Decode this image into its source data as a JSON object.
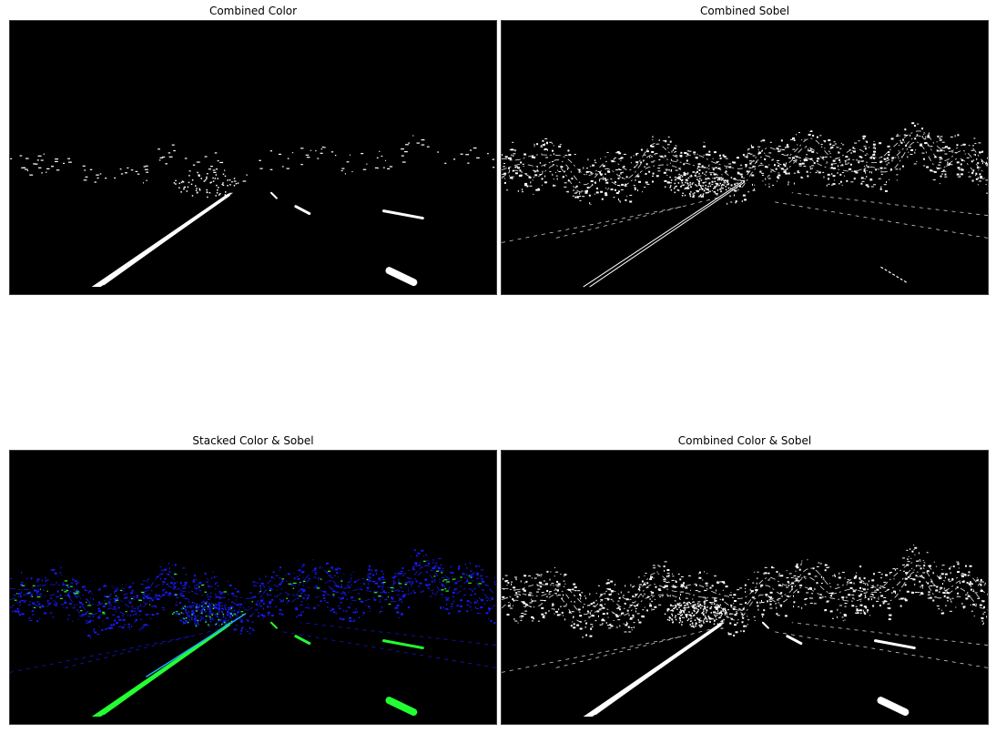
{
  "figure": {
    "panels": [
      {
        "title": "Combined Color",
        "mode": "white-lane"
      },
      {
        "title": "Combined Sobel",
        "mode": "white-edges"
      },
      {
        "title": "Stacked Color & Sobel",
        "mode": "stacked"
      },
      {
        "title": "Combined Color & Sobel",
        "mode": "white-combined"
      }
    ]
  },
  "colors": {
    "background": "#000000",
    "white": "#ffffff",
    "sobel_channel": "#1a1aff",
    "color_channel": "#22ff33",
    "overlap": "#22aaff"
  }
}
